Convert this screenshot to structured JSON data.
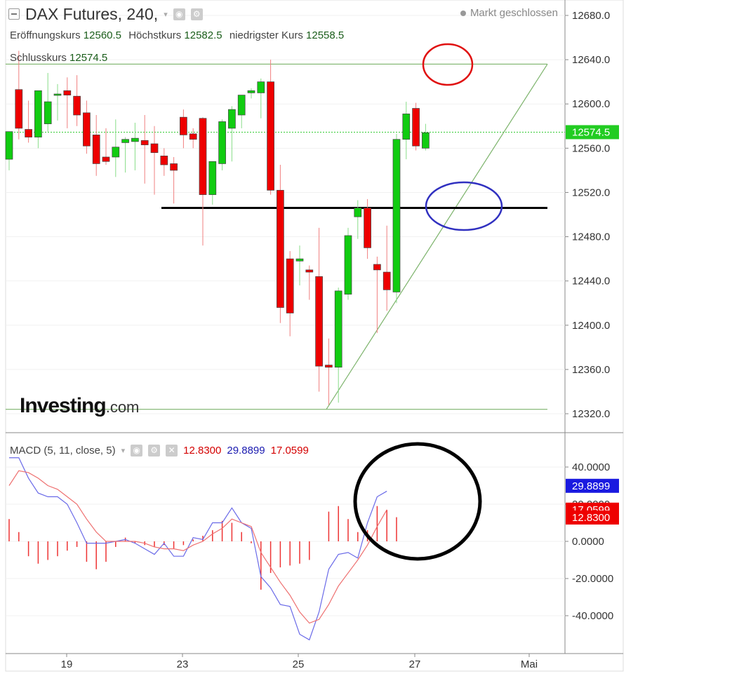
{
  "header": {
    "title": "DAX Futures, 240,",
    "dropdown_glyph": "▾",
    "market_status": "Markt geschlossen",
    "open_label": "Eröffnungskurs",
    "open_value": "12560.5",
    "high_label": "Höchstkurs",
    "high_value": "12582.5",
    "low_label": "niedrigster Kurs",
    "low_value": "12558.5",
    "close_label": "Schlusskurs",
    "close_value": "12574.5"
  },
  "logo": {
    "brand": "Investing",
    "suffix": ".com"
  },
  "macd_header": {
    "label": "MACD (5, 11, close, 5)",
    "dropdown_glyph": "▾",
    "macd_value": "12.8300",
    "signal_value": "29.8899",
    "hist_value": "17.0599"
  },
  "chart_data": [
    {
      "type": "candlestick",
      "title": "DAX Futures, 240,",
      "x_ticks": [
        "19",
        "23",
        "25",
        "27",
        "Mai"
      ],
      "y_ticks": [
        12320,
        12360,
        12400,
        12440,
        12480,
        12520,
        12560,
        12600,
        12640,
        12680
      ],
      "ylim": [
        12310,
        12690
      ],
      "last_price": 12574.5,
      "colors": {
        "up": "#11cc11",
        "down": "#ee0000",
        "last_price_badge": "#22cc22"
      },
      "candles": [
        {
          "o": 12550,
          "h": 12575,
          "l": 12540,
          "c": 12575
        },
        {
          "o": 12613,
          "h": 12648,
          "l": 12568,
          "c": 12578
        },
        {
          "o": 12577,
          "h": 12603,
          "l": 12565,
          "c": 12570
        },
        {
          "o": 12570,
          "h": 12610,
          "l": 12560,
          "c": 12612
        },
        {
          "o": 12582,
          "h": 12628,
          "l": 12575,
          "c": 12602
        },
        {
          "o": 12608,
          "h": 12618,
          "l": 12585,
          "c": 12609
        },
        {
          "o": 12612,
          "h": 12624,
          "l": 12578,
          "c": 12608
        },
        {
          "o": 12607,
          "h": 12626,
          "l": 12580,
          "c": 12590
        },
        {
          "o": 12592,
          "h": 12603,
          "l": 12555,
          "c": 12562
        },
        {
          "o": 12572,
          "h": 12590,
          "l": 12535,
          "c": 12546
        },
        {
          "o": 12552,
          "h": 12578,
          "l": 12545,
          "c": 12548
        },
        {
          "o": 12552,
          "h": 12586,
          "l": 12534,
          "c": 12561
        },
        {
          "o": 12565,
          "h": 12570,
          "l": 12538,
          "c": 12568
        },
        {
          "o": 12566,
          "h": 12583,
          "l": 12540,
          "c": 12569
        },
        {
          "o": 12567,
          "h": 12590,
          "l": 12528,
          "c": 12563
        },
        {
          "o": 12564,
          "h": 12580,
          "l": 12518,
          "c": 12556
        },
        {
          "o": 12553,
          "h": 12560,
          "l": 12535,
          "c": 12545
        },
        {
          "o": 12546,
          "h": 12552,
          "l": 12510,
          "c": 12540
        },
        {
          "o": 12588,
          "h": 12595,
          "l": 12560,
          "c": 12572
        },
        {
          "o": 12573,
          "h": 12578,
          "l": 12560,
          "c": 12568
        },
        {
          "o": 12587,
          "h": 12588,
          "l": 12472,
          "c": 12518
        },
        {
          "o": 12518,
          "h": 12546,
          "l": 12509,
          "c": 12548
        },
        {
          "o": 12546,
          "h": 12586,
          "l": 12540,
          "c": 12584
        },
        {
          "o": 12578,
          "h": 12598,
          "l": 12548,
          "c": 12595
        },
        {
          "o": 12590,
          "h": 12608,
          "l": 12578,
          "c": 12608
        },
        {
          "o": 12610,
          "h": 12614,
          "l": 12605,
          "c": 12612
        },
        {
          "o": 12610,
          "h": 12623,
          "l": 12587,
          "c": 12620
        },
        {
          "o": 12620,
          "h": 12640,
          "l": 12518,
          "c": 12522
        },
        {
          "o": 12522,
          "h": 12545,
          "l": 12402,
          "c": 12416
        },
        {
          "o": 12460,
          "h": 12467,
          "l": 12390,
          "c": 12411
        },
        {
          "o": 12458,
          "h": 12472,
          "l": 12436,
          "c": 12460
        },
        {
          "o": 12450,
          "h": 12454,
          "l": 12423,
          "c": 12448
        },
        {
          "o": 12444,
          "h": 12488,
          "l": 12340,
          "c": 12363
        },
        {
          "o": 12364,
          "h": 12388,
          "l": 12328,
          "c": 12362
        },
        {
          "o": 12362,
          "h": 12434,
          "l": 12330,
          "c": 12431
        },
        {
          "o": 12428,
          "h": 12488,
          "l": 12423,
          "c": 12481
        },
        {
          "o": 12498,
          "h": 12513,
          "l": 12478,
          "c": 12506
        },
        {
          "o": 12506,
          "h": 12514,
          "l": 12460,
          "c": 12470
        },
        {
          "o": 12455,
          "h": 12462,
          "l": 12393,
          "c": 12450
        },
        {
          "o": 12448,
          "h": 12490,
          "l": 12413,
          "c": 12432
        },
        {
          "o": 12430,
          "h": 12573,
          "l": 12420,
          "c": 12568
        },
        {
          "o": 12568,
          "h": 12602,
          "l": 12550,
          "c": 12591
        },
        {
          "o": 12596,
          "h": 12601,
          "l": 12558,
          "c": 12562
        },
        {
          "o": 12560,
          "h": 12582,
          "l": 12558,
          "c": 12574
        }
      ],
      "drawings": {
        "horizontal_levels": [
          12636,
          12324
        ],
        "support_level": 12506,
        "ascending_trendline": [
          12324,
          12636
        ]
      }
    },
    {
      "type": "line",
      "title": "MACD (5, 11, close, 5)",
      "y_ticks": [
        "40.0000",
        "20.0000",
        "0.0000",
        "-20.0000",
        "-40.0000"
      ],
      "ylim": [
        -60,
        55
      ],
      "badges": [
        "29.8899",
        "17.0599",
        "12.8300"
      ],
      "colors": {
        "blue_line": "#6a6ae8",
        "red_line": "#ee7070",
        "histogram": "#ee3333"
      },
      "series": [
        {
          "values": [
            45,
            45,
            34,
            26,
            24,
            24,
            20,
            10,
            -1,
            -1,
            -1,
            0,
            1,
            -1,
            -4,
            -7,
            -1,
            -8,
            -8,
            2,
            1,
            10,
            10,
            18,
            10,
            7,
            -19,
            -25,
            -34,
            -35,
            -50,
            -53,
            -38,
            -15,
            -7,
            -6,
            -9,
            10,
            24,
            27
          ]
        },
        {
          "values": [
            30,
            38,
            37,
            34,
            30,
            28,
            24,
            20,
            12,
            5,
            0,
            0,
            0,
            0,
            -1,
            -3,
            -4,
            -4,
            -5,
            -2,
            0,
            4,
            7,
            12,
            10,
            8,
            -6,
            -14,
            -22,
            -29,
            -38,
            -44,
            -42,
            -34,
            -24,
            -17,
            -10,
            -2,
            8,
            17
          ]
        },
        {
          "values": [
            12,
            5,
            -8,
            -12,
            -10,
            -8,
            -5,
            -3,
            -11,
            -15,
            -11,
            -3,
            2,
            -1,
            -2,
            -3,
            -2,
            -4,
            -2,
            1,
            3,
            6,
            11,
            10,
            5,
            -1,
            -26,
            -17,
            -14,
            -13,
            -12,
            -10,
            0,
            16,
            19,
            12,
            5,
            6,
            19,
            17,
            13
          ]
        }
      ]
    }
  ]
}
